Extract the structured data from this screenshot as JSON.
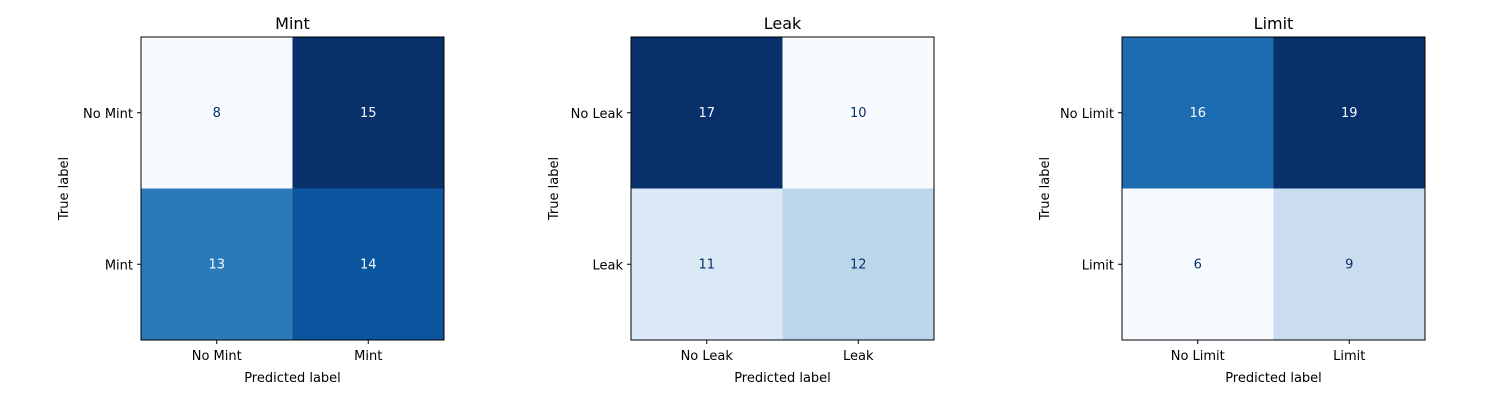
{
  "chart_data": [
    {
      "type": "heatmap",
      "title": "Mint",
      "xlabel": "Predicted label",
      "ylabel": "True label",
      "x_tick_labels": [
        "No Mint",
        "Mint"
      ],
      "y_tick_labels": [
        "No Mint",
        "Mint"
      ],
      "matrix": [
        [
          8,
          15
        ],
        [
          13,
          14
        ]
      ],
      "colormap": "Blues",
      "grid": false
    },
    {
      "type": "heatmap",
      "title": "Leak",
      "xlabel": "Predicted label",
      "ylabel": "True label",
      "x_tick_labels": [
        "No Leak",
        "Leak"
      ],
      "y_tick_labels": [
        "No Leak",
        "Leak"
      ],
      "matrix": [
        [
          17,
          10
        ],
        [
          11,
          12
        ]
      ],
      "colormap": "Blues",
      "grid": false
    },
    {
      "type": "heatmap",
      "title": "Limit",
      "xlabel": "Predicted label",
      "ylabel": "True label",
      "x_tick_labels": [
        "No Limit",
        "Limit"
      ],
      "y_tick_labels": [
        "No Limit",
        "Limit"
      ],
      "matrix": [
        [
          16,
          19
        ],
        [
          6,
          9
        ]
      ],
      "colormap": "Blues",
      "grid": false
    }
  ],
  "colors": {
    "blues_min": "#f7fbff",
    "blues_max": "#08306b",
    "text_light": "#f7fbff",
    "text_dark": "#08306b"
  }
}
